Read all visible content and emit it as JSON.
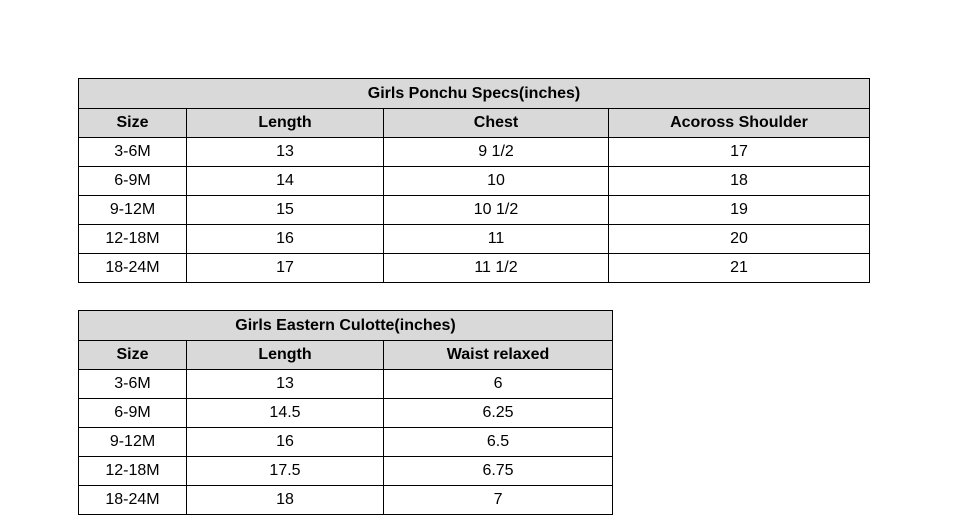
{
  "colors": {
    "header_bg": "#d9d9d9",
    "border": "#000000",
    "page_bg": "#ffffff",
    "text": "#000000"
  },
  "chart_data": [
    {
      "type": "table",
      "title": "Girls Ponchu Specs(inches)",
      "columns": [
        "Size",
        "Length",
        "Chest",
        "Acoross Shoulder"
      ],
      "rows": [
        [
          "3-6M",
          "13",
          "9 1/2",
          "17"
        ],
        [
          "6-9M",
          "14",
          "10",
          "18"
        ],
        [
          "9-12M",
          "15",
          "10 1/2",
          "19"
        ],
        [
          "12-18M",
          "16",
          "11",
          "20"
        ],
        [
          "18-24M",
          "17",
          "11 1/2",
          "21"
        ]
      ]
    },
    {
      "type": "table",
      "title": "Girls Eastern Culotte(inches)",
      "columns": [
        "Size",
        "Length",
        "Waist relaxed"
      ],
      "rows": [
        [
          "3-6M",
          "13",
          "6"
        ],
        [
          "6-9M",
          "14.5",
          "6.25"
        ],
        [
          "9-12M",
          "16",
          "6.5"
        ],
        [
          "12-18M",
          "17.5",
          "6.75"
        ],
        [
          "18-24M",
          "18",
          "7"
        ]
      ]
    }
  ]
}
